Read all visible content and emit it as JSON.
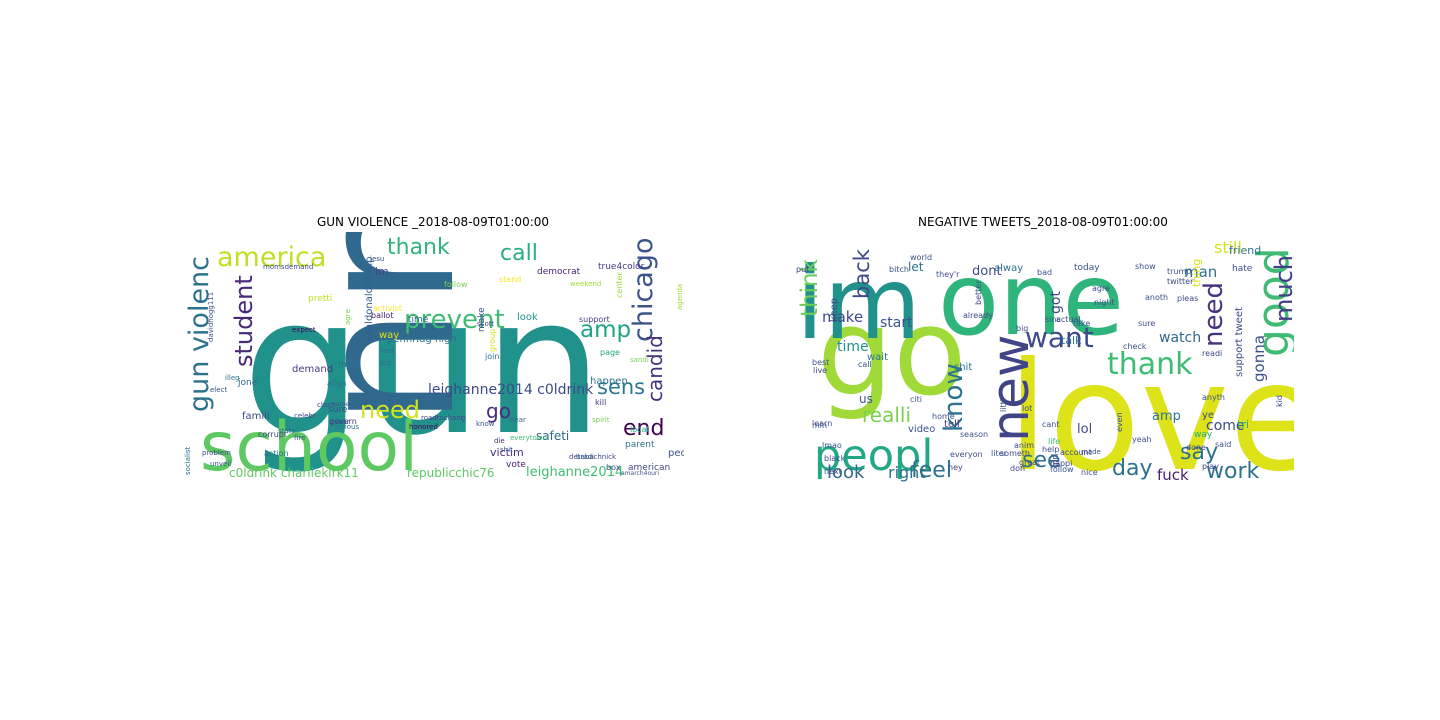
{
  "figure": {
    "panels": [
      {
        "title": "GUN VIOLENCE _2018-08-09T01:00:00",
        "words": [
          {
            "text": "gun",
            "color": "#21918c"
          },
          {
            "text": "nra",
            "color": "#31688e"
          },
          {
            "text": "school",
            "color": "#5ec962"
          },
          {
            "text": "america",
            "color": "#c0df25"
          },
          {
            "text": "prevent",
            "color": "#3fbc73"
          },
          {
            "text": "chicago",
            "color": "#3b528b"
          },
          {
            "text": "gun violenc",
            "color": "#2c728e"
          },
          {
            "text": "student",
            "color": "#482878"
          },
          {
            "text": "thank",
            "color": "#2fb47c"
          },
          {
            "text": "call",
            "color": "#28ae80"
          },
          {
            "text": "amp",
            "color": "#20a486"
          },
          {
            "text": "candid",
            "color": "#46327e"
          },
          {
            "text": "sens",
            "color": "#2a788e"
          },
          {
            "text": "need",
            "color": "#d2e21b"
          },
          {
            "text": "end",
            "color": "#440154"
          },
          {
            "text": "go",
            "color": "#472d7b"
          },
          {
            "text": "leighanne2014 c0ldrink",
            "color": "#3e4a89"
          },
          {
            "text": "c0ldrink charliekirk11",
            "color": "#5ec962"
          },
          {
            "text": "republicchic76",
            "color": "#5ec962"
          },
          {
            "text": "leighanne2014",
            "color": "#3fbc73"
          },
          {
            "text": "safeti",
            "color": "#31688e"
          },
          {
            "text": "victim",
            "color": "#472d7b"
          },
          {
            "text": "pennridg high",
            "color": "#2c728e"
          },
          {
            "text": "realdonaldtrump",
            "color": "#355f8d"
          },
          {
            "text": "demand",
            "color": "#443983"
          },
          {
            "text": "make",
            "color": "#3b528b"
          },
          {
            "text": "look",
            "color": "#21918c"
          },
          {
            "text": "time",
            "color": "#31688e"
          },
          {
            "text": "im",
            "color": "#414487"
          },
          {
            "text": "way",
            "color": "#d8e219"
          },
          {
            "text": "famili",
            "color": "#3e4a89"
          },
          {
            "text": "jone",
            "color": "#31688e"
          },
          {
            "text": "happen",
            "color": "#2c728e"
          },
          {
            "text": "peopl",
            "color": "#3b528b"
          },
          {
            "text": "vote",
            "color": "#481f70"
          },
          {
            "text": "parent",
            "color": "#2c728e"
          },
          {
            "text": "american",
            "color": "#3e4a89"
          },
          {
            "text": "sure",
            "color": "#3e4a89"
          },
          {
            "text": "mom",
            "color": "#2c728e"
          },
          {
            "text": "ballot",
            "color": "#482475"
          },
          {
            "text": "activist",
            "color": "#fde725"
          },
          {
            "text": "democrat",
            "color": "#482475"
          },
          {
            "text": "true4color",
            "color": "#443983"
          },
          {
            "text": "stand",
            "color": "#fde725"
          },
          {
            "text": "center",
            "color": "#a0da39"
          },
          {
            "text": "follow",
            "color": "#7ad151"
          },
          {
            "text": "join",
            "color": "#2c728e"
          },
          {
            "text": "group",
            "color": "#d2e21b"
          },
          {
            "text": "kill",
            "color": "#443983"
          },
          {
            "text": "support",
            "color": "#433e85"
          },
          {
            "text": "page",
            "color": "#22a884"
          },
          {
            "text": "box",
            "color": "#3e4a89"
          },
          {
            "text": "local",
            "color": "#22a884"
          },
          {
            "text": "shit",
            "color": "#3b528b"
          },
          {
            "text": "hear",
            "color": "#31688e"
          },
          {
            "text": "spirit",
            "color": "#7ad151"
          },
          {
            "text": "die",
            "color": "#472d7b"
          },
          {
            "text": "bradi",
            "color": "#31688e"
          },
          {
            "text": "everytown",
            "color": "#3fbc73"
          },
          {
            "text": "corrupt",
            "color": "#414487"
          },
          {
            "text": "action",
            "color": "#2c728e"
          },
          {
            "text": "fire",
            "color": "#3b528b"
          },
          {
            "text": "state",
            "color": "#31688e"
          },
          {
            "text": "govern",
            "color": "#46327e"
          },
          {
            "text": "align",
            "color": "#2c728e"
          },
          {
            "text": "claim",
            "color": "#3e4a89"
          },
          {
            "text": "elect",
            "color": "#3b528b"
          },
          {
            "text": "problem",
            "color": "#3e4a89"
          },
          {
            "text": "unveil",
            "color": "#3b528b"
          },
          {
            "text": "illeg",
            "color": "#2c728e"
          },
          {
            "text": "root",
            "color": "#31688e"
          },
          {
            "text": "led",
            "color": "#2c728e"
          },
          {
            "text": "expect",
            "color": "#440154"
          },
          {
            "text": "pretti",
            "color": "#c0df25"
          },
          {
            "text": "roadtochang",
            "color": "#3e4a89"
          },
          {
            "text": "year",
            "color": "#3b528b"
          },
          {
            "text": "serious",
            "color": "#2c728e"
          },
          {
            "text": "momsdemand",
            "color": "#3e4a89"
          },
          {
            "text": "detabachnick",
            "color": "#3e4a89"
          },
          {
            "text": "weekend",
            "color": "#a0da39"
          },
          {
            "text": "agre",
            "color": "#7ad151"
          },
          {
            "text": "jesu",
            "color": "#3b528b"
          },
          {
            "text": "scott",
            "color": "#3e4a89"
          },
          {
            "text": "know",
            "color": "#3b528b"
          },
          {
            "text": "sandi",
            "color": "#7ad151"
          },
          {
            "text": "agenda",
            "color": "#a0da39"
          },
          {
            "text": "honored",
            "color": "#440154"
          },
          {
            "text": "socialist",
            "color": "#2c728e"
          },
          {
            "text": "davidhogg111",
            "color": "#3e4a89"
          },
          {
            "text": "amarch4ouri",
            "color": "#3b528b"
          },
          {
            "text": "celebr",
            "color": "#3e4a89"
          },
          {
            "text": "name",
            "color": "#3b528b"
          }
        ]
      },
      {
        "title": "NEGATIVE TWEETS_2018-08-09T01:00:00",
        "words": [
          {
            "text": "love",
            "color": "#dde318"
          },
          {
            "text": "one",
            "color": "#2fb47c"
          },
          {
            "text": "go",
            "color": "#a0da39"
          },
          {
            "text": "im",
            "color": "#21918c"
          },
          {
            "text": "new",
            "color": "#414487"
          },
          {
            "text": "peopl",
            "color": "#22a884"
          },
          {
            "text": "good",
            "color": "#3fbc73"
          },
          {
            "text": "want",
            "color": "#3e4a89"
          },
          {
            "text": "thank",
            "color": "#3fbc73"
          },
          {
            "text": "know",
            "color": "#2c728e"
          },
          {
            "text": "much",
            "color": "#433e85"
          },
          {
            "text": "need",
            "color": "#46327e"
          },
          {
            "text": "feel",
            "color": "#2c728e"
          },
          {
            "text": "see",
            "color": "#2c728e"
          },
          {
            "text": "day",
            "color": "#2c728e"
          },
          {
            "text": "say",
            "color": "#2c728e"
          },
          {
            "text": "work",
            "color": "#2c728e"
          },
          {
            "text": "think",
            "color": "#6ccd5a"
          },
          {
            "text": "back",
            "color": "#3e4a89"
          },
          {
            "text": "realli",
            "color": "#7ad151"
          },
          {
            "text": "look",
            "color": "#31688e"
          },
          {
            "text": "right",
            "color": "#2c728e"
          },
          {
            "text": "fuck",
            "color": "#481f70"
          },
          {
            "text": "gonna",
            "color": "#3b528b"
          },
          {
            "text": "watch",
            "color": "#31688e"
          },
          {
            "text": "time",
            "color": "#21918c"
          },
          {
            "text": "make",
            "color": "#3e4a89"
          },
          {
            "text": "start",
            "color": "#3b528b"
          },
          {
            "text": "got",
            "color": "#3e4a89"
          },
          {
            "text": "man",
            "color": "#2c728e"
          },
          {
            "text": "dont",
            "color": "#3e4a89"
          },
          {
            "text": "still",
            "color": "#d2e21b"
          },
          {
            "text": "let",
            "color": "#2c728e"
          },
          {
            "text": "lol",
            "color": "#3e4a89"
          },
          {
            "text": "come",
            "color": "#3e4a89"
          },
          {
            "text": "amp",
            "color": "#2c728e"
          },
          {
            "text": "us",
            "color": "#3b528b"
          },
          {
            "text": "thing",
            "color": "#d8e219"
          },
          {
            "text": "friend",
            "color": "#2c728e"
          },
          {
            "text": "talk",
            "color": "#2c728e"
          },
          {
            "text": "tell",
            "color": "#443983"
          },
          {
            "text": "alway",
            "color": "#2c728e"
          },
          {
            "text": "shit",
            "color": "#2c728e"
          },
          {
            "text": "video",
            "color": "#3b528b"
          },
          {
            "text": "wait",
            "color": "#2c728e"
          },
          {
            "text": "keep",
            "color": "#3e4a89"
          },
          {
            "text": "ye",
            "color": "#3e4a89"
          },
          {
            "text": "tri",
            "color": "#22a884"
          },
          {
            "text": "way",
            "color": "#22a884"
          },
          {
            "text": "support tweet",
            "color": "#3e4a89"
          },
          {
            "text": "girl",
            "color": "#3e4a89"
          },
          {
            "text": "hate",
            "color": "#3e4a89"
          },
          {
            "text": "today",
            "color": "#3b528b"
          },
          {
            "text": "twitter",
            "color": "#3e4a89"
          },
          {
            "text": "trump",
            "color": "#3b528b"
          },
          {
            "text": "pleas",
            "color": "#3e4a89"
          },
          {
            "text": "follow",
            "color": "#3b528b"
          },
          {
            "text": "nice",
            "color": "#3e4a89"
          },
          {
            "text": "life",
            "color": "#3fbc73"
          },
          {
            "text": "even",
            "color": "#3b528b"
          },
          {
            "text": "done",
            "color": "#3e4a89"
          },
          {
            "text": "said",
            "color": "#3b528b"
          },
          {
            "text": "play",
            "color": "#3e4a89"
          },
          {
            "text": "made",
            "color": "#3b528b"
          },
          {
            "text": "help",
            "color": "#3e4a89"
          },
          {
            "text": "account",
            "color": "#3e4a89"
          },
          {
            "text": "cant",
            "color": "#3b528b"
          },
          {
            "text": "happi",
            "color": "#3e4a89"
          },
          {
            "text": "don",
            "color": "#3e4a89"
          },
          {
            "text": "call",
            "color": "#3b528b"
          },
          {
            "text": "lot",
            "color": "#3e4a89"
          },
          {
            "text": "big",
            "color": "#3b528b"
          },
          {
            "text": "better",
            "color": "#3e4a89"
          },
          {
            "text": "best",
            "color": "#3b528b"
          },
          {
            "text": "live",
            "color": "#3e4a89"
          },
          {
            "text": "citi",
            "color": "#3b528b"
          },
          {
            "text": "learn",
            "color": "#3e4a89"
          },
          {
            "text": "lmao",
            "color": "#3b528b"
          },
          {
            "text": "great",
            "color": "#3e4a89"
          },
          {
            "text": "season",
            "color": "#3b528b"
          },
          {
            "text": "agre",
            "color": "#3e4a89"
          },
          {
            "text": "show",
            "color": "#3b528b"
          },
          {
            "text": "night",
            "color": "#3e4a89"
          },
          {
            "text": "check",
            "color": "#3b528b"
          },
          {
            "text": "readi",
            "color": "#3e4a89"
          },
          {
            "text": "anyth",
            "color": "#3b528b"
          },
          {
            "text": "kid",
            "color": "#3e4a89"
          },
          {
            "text": "yeah",
            "color": "#3b528b"
          },
          {
            "text": "black",
            "color": "#3e4a89"
          },
          {
            "text": "world",
            "color": "#3b528b"
          },
          {
            "text": "next",
            "color": "#3e4a89"
          },
          {
            "text": "bad",
            "color": "#3b528b"
          },
          {
            "text": "everyon",
            "color": "#3e4a89"
          },
          {
            "text": "sinc",
            "color": "#3b528b"
          },
          {
            "text": "actual",
            "color": "#3e4a89"
          },
          {
            "text": "take",
            "color": "#3b528b"
          },
          {
            "text": "sure",
            "color": "#3e4a89"
          },
          {
            "text": "anoth",
            "color": "#3b528b"
          },
          {
            "text": "already",
            "color": "#3e4a89"
          },
          {
            "text": "littl",
            "color": "#3b528b"
          },
          {
            "text": "someth",
            "color": "#3e4a89"
          },
          {
            "text": "liter",
            "color": "#3b528b"
          },
          {
            "text": "hey",
            "color": "#3e4a89"
          },
          {
            "text": "min",
            "color": "#3b528b"
          },
          {
            "text": "anim",
            "color": "#3e4a89"
          },
          {
            "text": "bitch",
            "color": "#3b528b"
          },
          {
            "text": "they'r",
            "color": "#3e4a89"
          },
          {
            "text": "home",
            "color": "#3b528b"
          },
          {
            "text": "put",
            "color": "#3e4a89"
          },
          {
            "text": "sell",
            "color": "#3b528b"
          }
        ]
      }
    ]
  }
}
